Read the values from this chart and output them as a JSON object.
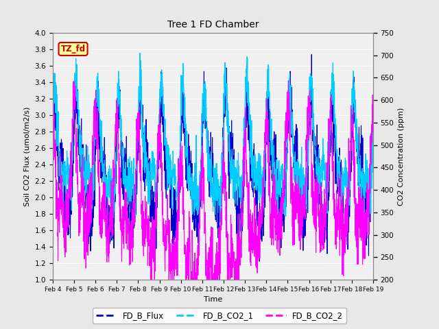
{
  "title": "Tree 1 FD Chamber",
  "xlabel": "Time",
  "ylabel_left": "Soil CO2 Flux (umol/m2/s)",
  "ylabel_right": "CO2 Concentration (ppm)",
  "ylim_left": [
    1.0,
    4.0
  ],
  "ylim_right": [
    200,
    750
  ],
  "xtick_labels": [
    "Feb 4",
    "Feb 5",
    "Feb 6",
    "Feb 7",
    "Feb 8",
    "Feb 9",
    "Feb 10",
    "Feb 11",
    "Feb 12",
    "Feb 13",
    "Feb 14",
    "Feb 15",
    "Feb 16",
    "Feb 17",
    "Feb 18",
    "Feb 19"
  ],
  "annotation_text": "TZ_fd",
  "annotation_facecolor": "#FFFF99",
  "annotation_edgecolor": "#CC0000",
  "annotation_textcolor": "#CC0000",
  "line_flux_color": "#0000CC",
  "line_co2_1_color": "#00CCFF",
  "line_co2_2_color": "#FF00FF",
  "line_width": 0.8,
  "legend_labels": [
    "FD_B_Flux",
    "FD_B_CO2_1",
    "FD_B_CO2_2"
  ],
  "plot_bg_color": "#F0F0F0",
  "fig_bg_color": "#E8E8E8",
  "grid_color": "#FFFFFF",
  "n_points": 2000,
  "seed": 42
}
